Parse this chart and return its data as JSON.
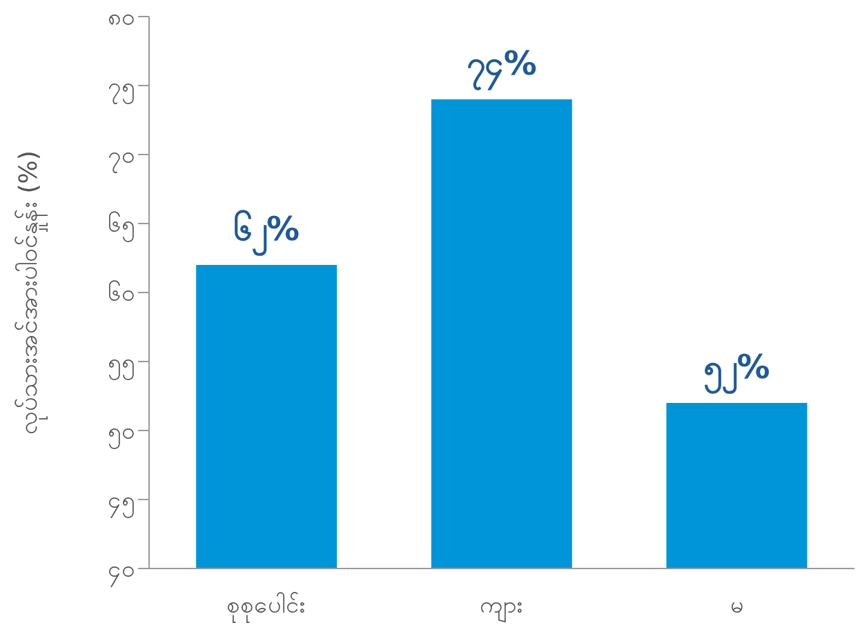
{
  "chart_data": {
    "type": "bar",
    "ylabel": "လုပ်သားအင်အားပါဝင်နှုန်း (%)",
    "categories": [
      "စုစုပေါင်း",
      "ကျား",
      "မ"
    ],
    "values": [
      62,
      74,
      52
    ],
    "color": "#0095d9",
    "value_labels": [
      "၆၂%",
      "၇၄%",
      "၅၂%"
    ],
    "ylim": [
      40,
      80
    ],
    "yticks": [
      {
        "value": 40,
        "label": "၄၀"
      },
      {
        "value": 45,
        "label": "၄၅"
      },
      {
        "value": 50,
        "label": "၅၀"
      },
      {
        "value": 55,
        "label": "၅၅"
      },
      {
        "value": 60,
        "label": "၆၀"
      },
      {
        "value": 65,
        "label": "၆၅"
      },
      {
        "value": 70,
        "label": "၇၀"
      },
      {
        "value": 75,
        "label": "၇၅"
      },
      {
        "value": 80,
        "label": "၈၀"
      }
    ],
    "grid": false
  }
}
